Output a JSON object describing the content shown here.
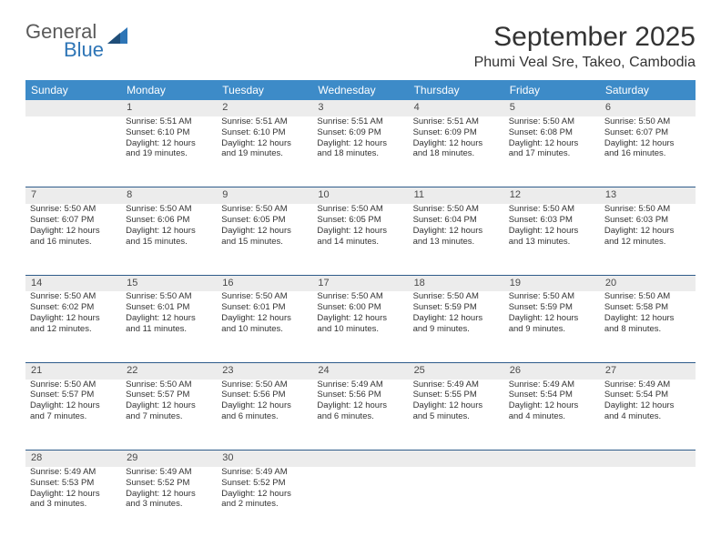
{
  "logo": {
    "text1": "General",
    "text2": "Blue"
  },
  "title": "September 2025",
  "location": "Phumi Veal Sre, Takeo, Cambodia",
  "colors": {
    "header_bg": "#3d8bc8",
    "header_text": "#ffffff",
    "daynum_bg": "#ececec",
    "cell_border": "#2e5b8a",
    "text": "#333333",
    "logo_gray": "#5a5a5a",
    "logo_blue": "#2e75b6"
  },
  "days_of_week": [
    "Sunday",
    "Monday",
    "Tuesday",
    "Wednesday",
    "Thursday",
    "Friday",
    "Saturday"
  ],
  "weeks": [
    {
      "nums": [
        "",
        "1",
        "2",
        "3",
        "4",
        "5",
        "6"
      ],
      "cells": [
        [],
        [
          "Sunrise: 5:51 AM",
          "Sunset: 6:10 PM",
          "Daylight: 12 hours",
          "and 19 minutes."
        ],
        [
          "Sunrise: 5:51 AM",
          "Sunset: 6:10 PM",
          "Daylight: 12 hours",
          "and 19 minutes."
        ],
        [
          "Sunrise: 5:51 AM",
          "Sunset: 6:09 PM",
          "Daylight: 12 hours",
          "and 18 minutes."
        ],
        [
          "Sunrise: 5:51 AM",
          "Sunset: 6:09 PM",
          "Daylight: 12 hours",
          "and 18 minutes."
        ],
        [
          "Sunrise: 5:50 AM",
          "Sunset: 6:08 PM",
          "Daylight: 12 hours",
          "and 17 minutes."
        ],
        [
          "Sunrise: 5:50 AM",
          "Sunset: 6:07 PM",
          "Daylight: 12 hours",
          "and 16 minutes."
        ]
      ]
    },
    {
      "nums": [
        "7",
        "8",
        "9",
        "10",
        "11",
        "12",
        "13"
      ],
      "cells": [
        [
          "Sunrise: 5:50 AM",
          "Sunset: 6:07 PM",
          "Daylight: 12 hours",
          "and 16 minutes."
        ],
        [
          "Sunrise: 5:50 AM",
          "Sunset: 6:06 PM",
          "Daylight: 12 hours",
          "and 15 minutes."
        ],
        [
          "Sunrise: 5:50 AM",
          "Sunset: 6:05 PM",
          "Daylight: 12 hours",
          "and 15 minutes."
        ],
        [
          "Sunrise: 5:50 AM",
          "Sunset: 6:05 PM",
          "Daylight: 12 hours",
          "and 14 minutes."
        ],
        [
          "Sunrise: 5:50 AM",
          "Sunset: 6:04 PM",
          "Daylight: 12 hours",
          "and 13 minutes."
        ],
        [
          "Sunrise: 5:50 AM",
          "Sunset: 6:03 PM",
          "Daylight: 12 hours",
          "and 13 minutes."
        ],
        [
          "Sunrise: 5:50 AM",
          "Sunset: 6:03 PM",
          "Daylight: 12 hours",
          "and 12 minutes."
        ]
      ]
    },
    {
      "nums": [
        "14",
        "15",
        "16",
        "17",
        "18",
        "19",
        "20"
      ],
      "cells": [
        [
          "Sunrise: 5:50 AM",
          "Sunset: 6:02 PM",
          "Daylight: 12 hours",
          "and 12 minutes."
        ],
        [
          "Sunrise: 5:50 AM",
          "Sunset: 6:01 PM",
          "Daylight: 12 hours",
          "and 11 minutes."
        ],
        [
          "Sunrise: 5:50 AM",
          "Sunset: 6:01 PM",
          "Daylight: 12 hours",
          "and 10 minutes."
        ],
        [
          "Sunrise: 5:50 AM",
          "Sunset: 6:00 PM",
          "Daylight: 12 hours",
          "and 10 minutes."
        ],
        [
          "Sunrise: 5:50 AM",
          "Sunset: 5:59 PM",
          "Daylight: 12 hours",
          "and 9 minutes."
        ],
        [
          "Sunrise: 5:50 AM",
          "Sunset: 5:59 PM",
          "Daylight: 12 hours",
          "and 9 minutes."
        ],
        [
          "Sunrise: 5:50 AM",
          "Sunset: 5:58 PM",
          "Daylight: 12 hours",
          "and 8 minutes."
        ]
      ]
    },
    {
      "nums": [
        "21",
        "22",
        "23",
        "24",
        "25",
        "26",
        "27"
      ],
      "cells": [
        [
          "Sunrise: 5:50 AM",
          "Sunset: 5:57 PM",
          "Daylight: 12 hours",
          "and 7 minutes."
        ],
        [
          "Sunrise: 5:50 AM",
          "Sunset: 5:57 PM",
          "Daylight: 12 hours",
          "and 7 minutes."
        ],
        [
          "Sunrise: 5:50 AM",
          "Sunset: 5:56 PM",
          "Daylight: 12 hours",
          "and 6 minutes."
        ],
        [
          "Sunrise: 5:49 AM",
          "Sunset: 5:56 PM",
          "Daylight: 12 hours",
          "and 6 minutes."
        ],
        [
          "Sunrise: 5:49 AM",
          "Sunset: 5:55 PM",
          "Daylight: 12 hours",
          "and 5 minutes."
        ],
        [
          "Sunrise: 5:49 AM",
          "Sunset: 5:54 PM",
          "Daylight: 12 hours",
          "and 4 minutes."
        ],
        [
          "Sunrise: 5:49 AM",
          "Sunset: 5:54 PM",
          "Daylight: 12 hours",
          "and 4 minutes."
        ]
      ]
    },
    {
      "nums": [
        "28",
        "29",
        "30",
        "",
        "",
        "",
        ""
      ],
      "cells": [
        [
          "Sunrise: 5:49 AM",
          "Sunset: 5:53 PM",
          "Daylight: 12 hours",
          "and 3 minutes."
        ],
        [
          "Sunrise: 5:49 AM",
          "Sunset: 5:52 PM",
          "Daylight: 12 hours",
          "and 3 minutes."
        ],
        [
          "Sunrise: 5:49 AM",
          "Sunset: 5:52 PM",
          "Daylight: 12 hours",
          "and 2 minutes."
        ],
        [],
        [],
        [],
        []
      ]
    }
  ]
}
